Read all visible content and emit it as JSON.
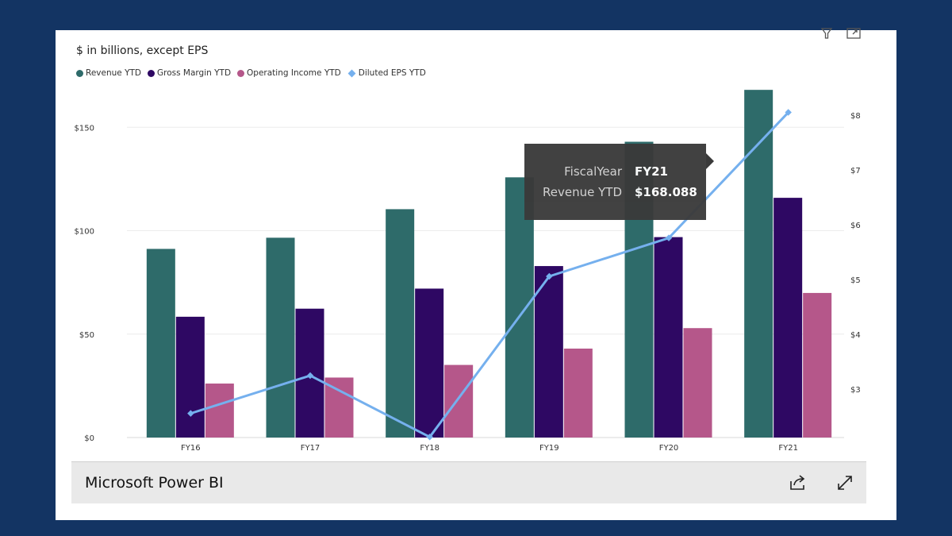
{
  "app": {
    "footer_title": "Microsoft Power BI"
  },
  "icons": {
    "filter": "filter-icon",
    "focus": "focus-mode-icon",
    "share": "share-icon",
    "expand": "expand-icon"
  },
  "colors": {
    "background": "#133463",
    "revenue": "#2e6b6a",
    "gross": "#2e0863",
    "operating": "#b5578a",
    "eps": "#75b0ee"
  },
  "chart_data": {
    "type": "bar",
    "title": "$ in billions, except EPS",
    "categories": [
      "FY16",
      "FY17",
      "FY18",
      "FY19",
      "FY20",
      "FY21"
    ],
    "series": [
      {
        "name": "Revenue YTD",
        "type": "bar",
        "axis": "left",
        "values": [
          91.2,
          96.6,
          110.4,
          125.8,
          143.0,
          168.088
        ]
      },
      {
        "name": "Gross Margin YTD",
        "type": "bar",
        "axis": "left",
        "values": [
          58.4,
          62.3,
          72.0,
          82.9,
          96.9,
          115.9
        ]
      },
      {
        "name": "Operating Income YTD",
        "type": "bar",
        "axis": "left",
        "values": [
          26.1,
          29.0,
          35.1,
          43.0,
          52.9,
          69.9
        ]
      },
      {
        "name": "Diluted EPS YTD",
        "type": "line",
        "axis": "right",
        "values": [
          2.56,
          3.25,
          2.13,
          5.06,
          5.76,
          8.05
        ]
      }
    ],
    "y_left": {
      "ticks": [
        0,
        50,
        100,
        150
      ],
      "labels": [
        "$0",
        "$50",
        "$100",
        "$150"
      ],
      "range": [
        0,
        167
      ]
    },
    "y_right": {
      "ticks": [
        3,
        4,
        5,
        6,
        7,
        8
      ],
      "labels": [
        "$3",
        "$4",
        "$5",
        "$6",
        "$7",
        "$8"
      ],
      "range": [
        2.12,
        8.42
      ]
    },
    "tooltip": {
      "key1": "FiscalYear",
      "val1": "FY21",
      "key2": "Revenue YTD",
      "val2": "$168.088"
    }
  }
}
